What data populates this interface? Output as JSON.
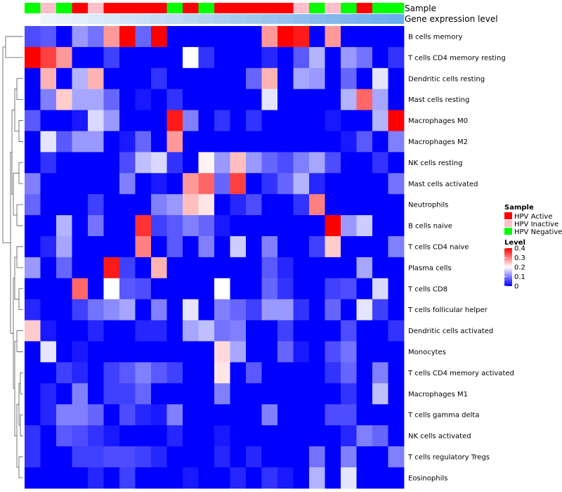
{
  "chart_data": {
    "type": "heatmap",
    "annotation_labels": {
      "sample": "Sample",
      "expression": "Gene expression level"
    },
    "sample_groups": [
      "Negative",
      "Inactive",
      "Negative",
      "Active",
      "Inactive",
      "Active",
      "Active",
      "Active",
      "Active",
      "Negative",
      "Active",
      "Negative",
      "Active",
      "Active",
      "Active",
      "Active",
      "Active",
      "Inactive",
      "Negative",
      "Inactive",
      "Negative",
      "Active",
      "Negative",
      "Negative"
    ],
    "expression_colors": [
      "#ffffff",
      "#eef4fb",
      "#e8f1fa",
      "#e2eef9",
      "#dceaf8",
      "#d6e7f7",
      "#d0e3f6",
      "#cae0f5",
      "#c4dcf4",
      "#bed9f3",
      "#b8d5f2",
      "#b2d2f1",
      "#accef0",
      "#a6cbef",
      "#a0c8ee",
      "#9ac4ee",
      "#94c1ee",
      "#8ebeee",
      "#88bbee",
      "#82b8ee",
      "#7cb5ef",
      "#76b2f0",
      "#70b0f1",
      "#6aaef2"
    ],
    "rows": [
      "B cells memory",
      "T cells CD4 memory resting",
      "Dendritic cells resting",
      "Mast cells resting",
      "Macrophages M0",
      "Macrophages M2",
      "NK cells resting",
      "Mast cells activated",
      "Neutrophils",
      "B cells naive",
      "T cells CD4 naive",
      "Plasma cells",
      "T cells CD8",
      "T cells follicular helper",
      "Dendritic cells activated",
      "Monocytes",
      "T cells CD4 memory activated",
      "Macrophages M1",
      "T cells gamma delta",
      "NK cells activated",
      "T cells regulatory  Tregs",
      "Eosinophils"
    ],
    "values": [
      [
        0.06,
        0.07,
        0.0,
        0.12,
        0.09,
        0.28,
        0.4,
        0.08,
        0.4,
        0.0,
        0.0,
        0.0,
        0.0,
        0.0,
        0.0,
        0.28,
        0.4,
        0.38,
        0.0,
        0.28,
        0.0,
        0.0,
        0.0,
        0.0
      ],
      [
        0.4,
        0.35,
        0.28,
        0.0,
        0.0,
        0.05,
        0.0,
        0.0,
        0.0,
        0.0,
        0.2,
        0.04,
        0.0,
        0.0,
        0.0,
        0.03,
        0.0,
        0.07,
        0.14,
        0.0,
        0.12,
        0.09,
        0.0,
        0.04
      ],
      [
        0.0,
        0.26,
        0.0,
        0.14,
        0.26,
        0.0,
        0.0,
        0.0,
        0.04,
        0.0,
        0.0,
        0.0,
        0.0,
        0.0,
        0.08,
        0.26,
        0.0,
        0.13,
        0.12,
        0.0,
        0.08,
        0.0,
        0.18,
        0.0
      ],
      [
        0.0,
        0.1,
        0.24,
        0.13,
        0.13,
        0.08,
        0.0,
        0.02,
        0.0,
        0.04,
        0.0,
        0.0,
        0.0,
        0.0,
        0.0,
        0.18,
        0.0,
        0.0,
        0.0,
        0.0,
        0.14,
        0.32,
        0.13,
        0.0
      ],
      [
        0.07,
        0.0,
        0.0,
        0.02,
        0.17,
        0.12,
        0.0,
        0.0,
        0.0,
        0.38,
        0.1,
        0.0,
        0.04,
        0.0,
        0.04,
        0.0,
        0.0,
        0.0,
        0.0,
        0.02,
        0.0,
        0.0,
        0.14,
        0.4
      ],
      [
        0.0,
        0.18,
        0.07,
        0.12,
        0.12,
        0.0,
        0.02,
        0.08,
        0.0,
        0.28,
        0.0,
        0.0,
        0.0,
        0.0,
        0.0,
        0.0,
        0.0,
        0.0,
        0.0,
        0.0,
        0.02,
        0.07,
        0.0,
        0.1
      ],
      [
        0.0,
        0.04,
        0.0,
        0.0,
        0.0,
        0.0,
        0.06,
        0.15,
        0.17,
        0.04,
        0.0,
        0.21,
        0.12,
        0.25,
        0.12,
        0.08,
        0.06,
        0.1,
        0.13,
        0.06,
        0.0,
        0.0,
        0.04,
        0.0
      ],
      [
        0.1,
        0.0,
        0.0,
        0.0,
        0.0,
        0.0,
        0.1,
        0.0,
        0.02,
        0.0,
        0.28,
        0.32,
        0.08,
        0.35,
        0.0,
        0.04,
        0.08,
        0.14,
        0.03,
        0.0,
        0.0,
        0.0,
        0.0,
        0.09
      ],
      [
        0.08,
        0.0,
        0.0,
        0.0,
        0.05,
        0.0,
        0.0,
        0.0,
        0.1,
        0.12,
        0.25,
        0.22,
        0.0,
        0.03,
        0.06,
        0.0,
        0.0,
        0.04,
        0.3,
        0.0,
        0.0,
        0.0,
        0.0,
        0.0
      ],
      [
        0.0,
        0.0,
        0.14,
        0.0,
        0.09,
        0.0,
        0.0,
        0.36,
        0.05,
        0.07,
        0.1,
        0.08,
        0.02,
        0.0,
        0.0,
        0.0,
        0.0,
        0.0,
        0.0,
        0.4,
        0.12,
        0.16,
        0.0,
        0.0
      ],
      [
        0.0,
        0.03,
        0.13,
        0.0,
        0.0,
        0.0,
        0.0,
        0.3,
        0.0,
        0.07,
        0.0,
        0.1,
        0.0,
        0.16,
        0.0,
        0.1,
        0.0,
        0.0,
        0.05,
        0.24,
        0.0,
        0.0,
        0.0,
        0.1
      ],
      [
        0.12,
        0.0,
        0.08,
        0.0,
        0.0,
        0.38,
        0.05,
        0.0,
        0.26,
        0.0,
        0.0,
        0.0,
        0.0,
        0.0,
        0.0,
        0.07,
        0.03,
        0.0,
        0.0,
        0.0,
        0.0,
        0.13,
        0.0,
        0.0
      ],
      [
        0.0,
        0.0,
        0.0,
        0.32,
        0.0,
        0.2,
        0.07,
        0.06,
        0.0,
        0.0,
        0.0,
        0.0,
        0.2,
        0.0,
        0.0,
        0.08,
        0.04,
        0.0,
        0.0,
        0.05,
        0.06,
        0.0,
        0.17,
        0.0
      ],
      [
        0.03,
        0.0,
        0.0,
        0.05,
        0.09,
        0.11,
        0.13,
        0.0,
        0.1,
        0.0,
        0.18,
        0.0,
        0.1,
        0.08,
        0.05,
        0.12,
        0.12,
        0.04,
        0.0,
        0.08,
        0.0,
        0.18,
        0.05,
        0.0
      ],
      [
        0.24,
        0.02,
        0.0,
        0.0,
        0.03,
        0.0,
        0.0,
        0.03,
        0.03,
        0.0,
        0.13,
        0.15,
        0.09,
        0.1,
        0.0,
        0.0,
        0.05,
        0.0,
        0.0,
        0.0,
        0.06,
        0.0,
        0.0,
        0.04
      ],
      [
        0.0,
        0.18,
        0.0,
        0.02,
        0.0,
        0.0,
        0.0,
        0.0,
        0.0,
        0.0,
        0.0,
        0.0,
        0.23,
        0.13,
        0.0,
        0.0,
        0.08,
        0.02,
        0.0,
        0.06,
        0.09,
        0.0,
        0.0,
        0.0
      ],
      [
        0.0,
        0.0,
        0.05,
        0.03,
        0.0,
        0.05,
        0.07,
        0.1,
        0.07,
        0.05,
        0.0,
        0.0,
        0.22,
        0.0,
        0.07,
        0.0,
        0.0,
        0.0,
        0.0,
        0.04,
        0.08,
        0.0,
        0.1,
        0.0
      ],
      [
        0.0,
        0.03,
        0.0,
        0.1,
        0.0,
        0.05,
        0.05,
        0.08,
        0.0,
        0.0,
        0.0,
        0.0,
        0.1,
        0.0,
        0.0,
        0.0,
        0.0,
        0.0,
        0.0,
        0.0,
        0.04,
        0.0,
        0.15,
        0.0
      ],
      [
        0.0,
        0.03,
        0.1,
        0.1,
        0.08,
        0.0,
        0.06,
        0.03,
        0.02,
        0.1,
        0.0,
        0.0,
        0.0,
        0.0,
        0.0,
        0.1,
        0.0,
        0.0,
        0.0,
        0.06,
        0.06,
        0.0,
        0.0,
        0.0
      ],
      [
        0.04,
        0.0,
        0.07,
        0.06,
        0.04,
        0.02,
        0.0,
        0.0,
        0.0,
        0.03,
        0.0,
        0.0,
        0.02,
        0.0,
        0.0,
        0.0,
        0.0,
        0.0,
        0.0,
        0.0,
        0.03,
        0.1,
        0.08,
        0.0
      ],
      [
        0.04,
        0.0,
        0.0,
        0.05,
        0.05,
        0.06,
        0.06,
        0.05,
        0.03,
        0.0,
        0.0,
        0.0,
        0.03,
        0.0,
        0.03,
        0.0,
        0.0,
        0.0,
        0.09,
        0.0,
        0.1,
        0.0,
        0.0,
        0.1
      ],
      [
        0.0,
        0.0,
        0.0,
        0.0,
        0.03,
        0.0,
        0.05,
        0.0,
        0.0,
        0.0,
        0.02,
        0.0,
        0.0,
        0.03,
        0.0,
        0.04,
        0.02,
        0.0,
        0.14,
        0.0,
        0.18,
        0.0,
        0.0,
        0.0
      ]
    ],
    "color_scale": {
      "min": 0,
      "max": 0.4,
      "low": "#0000ff",
      "mid": "#ffffff",
      "high": "#ff0000",
      "mid_value": 0.2
    },
    "legend": {
      "sample_title": "Sample",
      "sample_entries": [
        {
          "key": "Active",
          "label": "HPV Active",
          "color": "#ff0000"
        },
        {
          "key": "Inactive",
          "label": "HPV Inactive",
          "color": "#ffc0cb"
        },
        {
          "key": "Negative",
          "label": "HPV Negative",
          "color": "#00ff00"
        }
      ],
      "level_title": "Level",
      "level_ticks": [
        "0.4",
        "0.3",
        "0.2",
        "0.1",
        "0"
      ],
      "level_tick_values": [
        0.4,
        0.3,
        0.2,
        0.1,
        0
      ],
      "position": "right"
    }
  }
}
